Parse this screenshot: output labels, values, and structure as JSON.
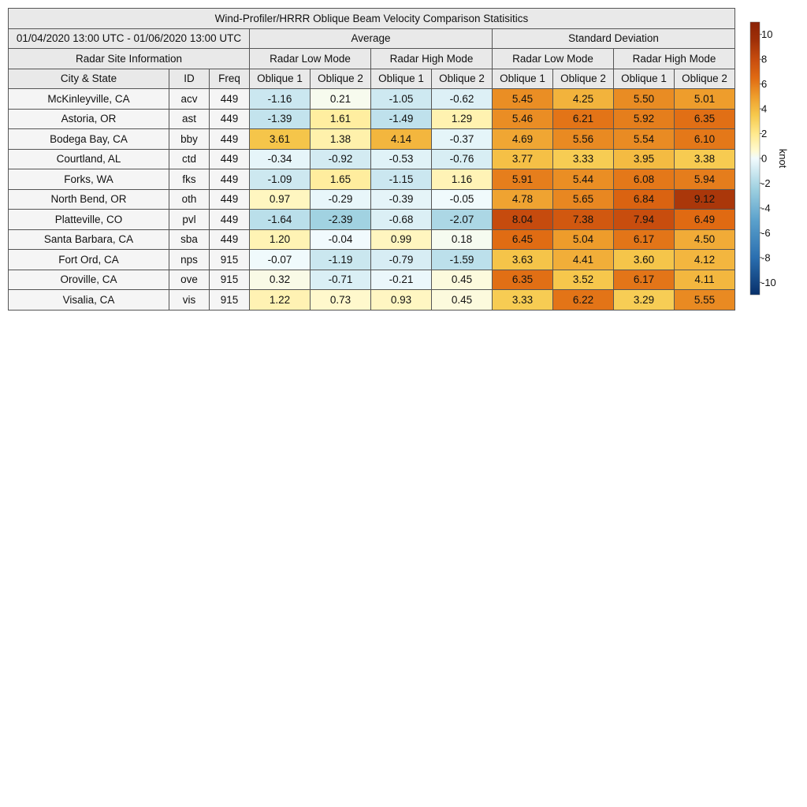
{
  "chart_data": {
    "type": "table",
    "title": "Wind-Profiler/HRRR Oblique Beam Velocity Comparison Statisitics",
    "date_range": "01/04/2020 13:00 UTC - 01/06/2020 13:00 UTC",
    "groups": [
      "Average",
      "Standard Deviation"
    ],
    "modes": [
      "Radar Low Mode",
      "Radar High Mode",
      "Radar Low Mode",
      "Radar High Mode"
    ],
    "site_group_label": "Radar Site Information",
    "columns": [
      "City & State",
      "ID",
      "Freq",
      "Oblique 1",
      "Oblique 2",
      "Oblique 1",
      "Oblique 2",
      "Oblique 1",
      "Oblique 2",
      "Oblique 1",
      "Oblique 2"
    ],
    "rows": [
      {
        "city": "McKinleyville, CA",
        "id": "acv",
        "freq": "449",
        "values": [
          "-1.16",
          "0.21",
          "-1.05",
          "-0.62",
          "5.45",
          "4.25",
          "5.50",
          "5.01"
        ]
      },
      {
        "city": "Astoria, OR",
        "id": "ast",
        "freq": "449",
        "values": [
          "-1.39",
          "1.61",
          "-1.49",
          "1.29",
          "5.46",
          "6.21",
          "5.92",
          "6.35"
        ]
      },
      {
        "city": "Bodega Bay, CA",
        "id": "bby",
        "freq": "449",
        "values": [
          "3.61",
          "1.38",
          "4.14",
          "-0.37",
          "4.69",
          "5.56",
          "5.54",
          "6.10"
        ]
      },
      {
        "city": "Courtland, AL",
        "id": "ctd",
        "freq": "449",
        "values": [
          "-0.34",
          "-0.92",
          "-0.53",
          "-0.76",
          "3.77",
          "3.33",
          "3.95",
          "3.38"
        ]
      },
      {
        "city": "Forks, WA",
        "id": "fks",
        "freq": "449",
        "values": [
          "-1.09",
          "1.65",
          "-1.15",
          "1.16",
          "5.91",
          "5.44",
          "6.08",
          "5.94"
        ]
      },
      {
        "city": "North Bend, OR",
        "id": "oth",
        "freq": "449",
        "values": [
          "0.97",
          "-0.29",
          "-0.39",
          "-0.05",
          "4.78",
          "5.65",
          "6.84",
          "9.12"
        ]
      },
      {
        "city": "Platteville, CO",
        "id": "pvl",
        "freq": "449",
        "values": [
          "-1.64",
          "-2.39",
          "-0.68",
          "-2.07",
          "8.04",
          "7.38",
          "7.94",
          "6.49"
        ]
      },
      {
        "city": "Santa Barbara, CA",
        "id": "sba",
        "freq": "449",
        "values": [
          "1.20",
          "-0.04",
          "0.99",
          "0.18",
          "6.45",
          "5.04",
          "6.17",
          "4.50"
        ]
      },
      {
        "city": "Fort Ord, CA",
        "id": "nps",
        "freq": "915",
        "values": [
          "-0.07",
          "-1.19",
          "-0.79",
          "-1.59",
          "3.63",
          "4.41",
          "3.60",
          "4.12"
        ]
      },
      {
        "city": "Oroville, CA",
        "id": "ove",
        "freq": "915",
        "values": [
          "0.32",
          "-0.71",
          "-0.21",
          "0.45",
          "6.35",
          "3.52",
          "6.17",
          "4.11"
        ]
      },
      {
        "city": "Visalia, CA",
        "id": "vis",
        "freq": "915",
        "values": [
          "1.22",
          "0.73",
          "0.93",
          "0.45",
          "3.33",
          "6.22",
          "3.29",
          "5.55"
        ]
      }
    ],
    "colorbar": {
      "label": "knot",
      "range": [
        -11,
        11
      ],
      "ticks": [
        10,
        8,
        6,
        4,
        2,
        0,
        -2,
        -4,
        -6,
        -8,
        -10
      ],
      "tick_labels": [
        "10",
        "8",
        "6",
        "4",
        "2",
        "0",
        "-2",
        "-4",
        "-6",
        "-8",
        "-10"
      ],
      "colormap": [
        {
          "v": -11,
          "c": "#08306b"
        },
        {
          "v": -8,
          "c": "#2a6fb0"
        },
        {
          "v": -5,
          "c": "#5ba1cc"
        },
        {
          "v": -2.5,
          "c": "#9dd0e0"
        },
        {
          "v": 0,
          "c": "#f2fbfd"
        },
        {
          "v": 0.6,
          "c": "#fffad2"
        },
        {
          "v": 2,
          "c": "#ffe98c"
        },
        {
          "v": 3.5,
          "c": "#f6c84c"
        },
        {
          "v": 5,
          "c": "#ee9d2c"
        },
        {
          "v": 6.5,
          "c": "#e06a12"
        },
        {
          "v": 8,
          "c": "#c74c0e"
        },
        {
          "v": 9.5,
          "c": "#a03008"
        },
        {
          "v": 11,
          "c": "#8b2206"
        }
      ]
    }
  }
}
